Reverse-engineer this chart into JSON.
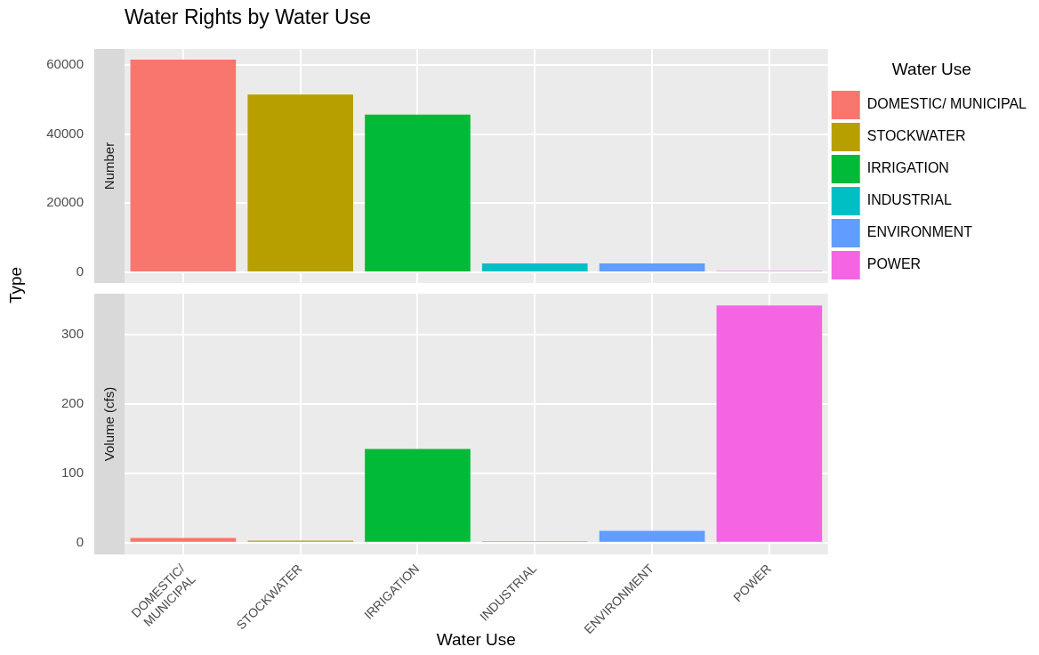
{
  "chart_data": [
    {
      "type": "bar",
      "title": "Water Rights by Water Use",
      "subtitle": "Number",
      "ylabel": "Type",
      "legend_title": "Water Use",
      "legend": "right",
      "series": [
        {
          "name": "DOMESTIC/\nMUNICIPAL",
          "color": "#f8766d",
          "values": [
            61500,
            null,
            null,
            null,
            null,
            null
          ]
        },
        {
          "name": "STOCKWATER",
          "color": "#b79f00",
          "values": [
            null,
            51400,
            null,
            null,
            null,
            null
          ]
        },
        {
          "name": "IRRIGATION",
          "color": "#00ba38",
          "values": [
            null,
            null,
            45600,
            null,
            null,
            null
          ]
        },
        {
          "name": "INDUSTRIAL",
          "color": "#00bfc4",
          "values": [
            null,
            null,
            null,
            2600,
            null,
            null
          ]
        },
        {
          "name": "ENVIRONMENT",
          "color": "#619cff",
          "values": [
            null,
            null,
            null,
            null,
            2600,
            null
          ]
        },
        {
          "name": "POWER",
          "color": "#f564e3",
          "values": [
            null,
            null,
            null,
            null,
            null,
            400
          ]
        }
      ],
      "ylim": [
        -3075,
        64575
      ],
      "yticks": [
        0,
        20000,
        40000,
        60000
      ],
      "grid": true,
      "tick_labels": "y"
    },
    {
      "type": "bar",
      "subtitle": "Volume (cfs)",
      "xlabel": "Water Use",
      "categories": [
        "DOMESTIC/\nMUNICIPAL",
        "STOCKWATER",
        "IRRIGATION",
        "INDUSTRIAL",
        "ENVIRONMENT",
        "POWER"
      ],
      "series": [
        {
          "color": "#f8766d",
          "values": [
            7,
            null,
            null,
            null,
            null,
            null
          ]
        },
        {
          "color": "#b79f00",
          "values": [
            null,
            3,
            null,
            null,
            null,
            null
          ]
        },
        {
          "color": "#00ba38",
          "values": [
            null,
            null,
            135,
            null,
            null,
            null
          ]
        },
        {
          "color": "#00bfc4",
          "values": [
            null,
            null,
            null,
            2,
            null,
            null
          ]
        },
        {
          "color": "#619cff",
          "values": [
            null,
            null,
            null,
            null,
            17,
            null
          ]
        },
        {
          "color": "#f564e3",
          "values": [
            null,
            null,
            null,
            null,
            null,
            342
          ]
        }
      ],
      "ylim": [
        -17,
        359
      ],
      "yticks": [
        0,
        100,
        200,
        300
      ],
      "grid": true
    }
  ]
}
